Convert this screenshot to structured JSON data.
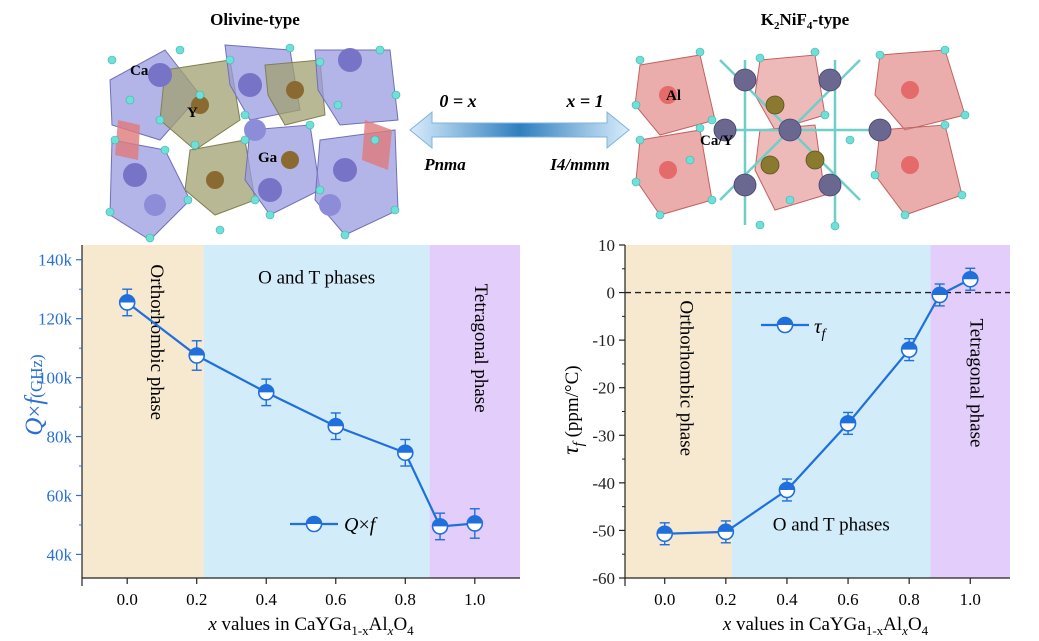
{
  "structures": {
    "left_title": "Olivine-type",
    "left_atoms": [
      "Ca",
      "Y",
      "Ga"
    ],
    "right_title_parts": [
      "K",
      "2",
      "NiF",
      "4",
      "-type"
    ],
    "right_atoms": [
      "Al",
      "Ca/Y"
    ],
    "arrow_left_label": "0 = x",
    "arrow_right_label": "x = 1",
    "left_space_group": "Pnma",
    "right_space_group": "I4/mmm"
  },
  "chart_data": [
    {
      "type": "line",
      "x": [
        0.0,
        0.2,
        0.4,
        0.6,
        0.8,
        0.9,
        1.0
      ],
      "series": [
        {
          "name": "Q×f",
          "values": [
            125500,
            107500,
            95000,
            83500,
            74500,
            49500,
            50500
          ],
          "error": [
            4500,
            5000,
            4500,
            4500,
            4500,
            4500,
            5000
          ],
          "color": "#1f6fdc",
          "marker": "half-filled-circle-top"
        }
      ],
      "xlim": [
        -0.13,
        1.13
      ],
      "ylim": [
        32000,
        145000
      ],
      "x_ticks": [
        "0.0",
        "0.2",
        "0.4",
        "0.6",
        "0.8",
        "1.0"
      ],
      "y_ticks": [
        "40k",
        "60k",
        "80k",
        "100k",
        "120k",
        "140k"
      ],
      "xlabel_parts": [
        "x",
        " values in CaYGa",
        "1-x",
        "Al",
        "x",
        "O",
        "4"
      ],
      "ylabel": {
        "q": "Q",
        "times": "×",
        "f": "f",
        "unit": "(GHz)"
      },
      "legend": {
        "q": "Q",
        "times": "×",
        "f": "f"
      },
      "regions": [
        {
          "label": "Orthorhombic phase",
          "from": -0.13,
          "to": 0.22,
          "color": "#f6e9cf"
        },
        {
          "label": "O and T phases",
          "from": 0.22,
          "to": 0.87,
          "color": "#d3ecfa"
        },
        {
          "label": "Tetragonal phase",
          "from": 0.87,
          "to": 1.13,
          "color": "#e3cdfa"
        }
      ]
    },
    {
      "type": "line",
      "x": [
        0.0,
        0.2,
        0.4,
        0.6,
        0.8,
        0.9,
        1.0
      ],
      "series": [
        {
          "name": "τf",
          "values": [
            -50.7,
            -50.3,
            -41.5,
            -27.5,
            -12.0,
            -0.5,
            2.8
          ],
          "error": [
            2.3,
            2.3,
            2.3,
            2.3,
            2.3,
            2.3,
            2.3
          ],
          "color": "#1f6fdc",
          "marker": "half-filled-circle-top"
        }
      ],
      "xlim": [
        -0.13,
        1.13
      ],
      "ylim": [
        -60,
        10
      ],
      "x_ticks": [
        "0.0",
        "0.2",
        "0.4",
        "0.6",
        "0.8",
        "1.0"
      ],
      "y_ticks": [
        "-60",
        "-50",
        "-40",
        "-30",
        "-20",
        "-10",
        "0",
        "10"
      ],
      "reference_line": 0,
      "xlabel_parts": [
        "x",
        " values in CaYGa",
        "1-x",
        "Al",
        "x",
        "O",
        "4"
      ],
      "ylabel": {
        "tau": "τ",
        "sub": "f",
        "unit": " (ppm/°C)"
      },
      "legend": {
        "tau": "τ",
        "sub": "f"
      },
      "regions": [
        {
          "label": "Orthorhombic phase",
          "from": -0.13,
          "to": 0.22,
          "color": "#f6e9cf"
        },
        {
          "label": "O and T phases",
          "from": 0.22,
          "to": 0.87,
          "color": "#d3ecfa"
        },
        {
          "label": "Tetragonal phase",
          "from": 0.87,
          "to": 1.13,
          "color": "#e3cdfa"
        }
      ]
    }
  ]
}
